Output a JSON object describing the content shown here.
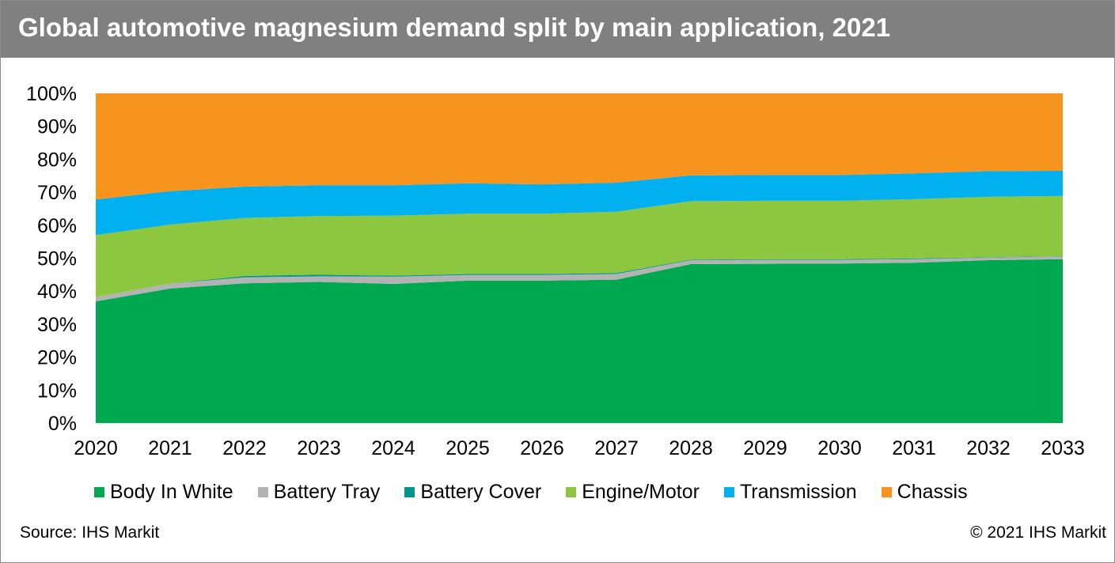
{
  "title": "Global automotive magnesium demand split by main application, 2021",
  "source": "Source: IHS Markit",
  "copyright": "© 2021 IHS Markit",
  "colors": {
    "title_bar": "#808080",
    "body_in_white": "#00A94F",
    "battery_tray": "#B3B3B3",
    "battery_cover": "#00958F",
    "engine_motor": "#8DC63F",
    "transmission": "#00B0EF",
    "chassis": "#F7941D"
  },
  "chart_data": {
    "type": "area",
    "stacked": "percent",
    "x": [
      2020,
      2021,
      2022,
      2023,
      2024,
      2025,
      2026,
      2027,
      2028,
      2029,
      2030,
      2031,
      2032,
      2033
    ],
    "ylim": [
      0,
      100
    ],
    "yticks": [
      "0%",
      "10%",
      "20%",
      "30%",
      "40%",
      "50%",
      "60%",
      "70%",
      "80%",
      "90%",
      "100%"
    ],
    "legend_position": "bottom",
    "grid": false,
    "series": [
      {
        "name": "Body In White",
        "color": "#00A94F",
        "values": [
          36.9,
          40.8,
          42.4,
          42.8,
          42.2,
          43.2,
          43.2,
          43.5,
          48.2,
          48.3,
          48.4,
          48.6,
          49.4,
          49.7
        ]
      },
      {
        "name": "Battery Tray",
        "color": "#B3B3B3",
        "values": [
          1.3,
          1.5,
          1.8,
          1.7,
          2.2,
          1.7,
          1.7,
          1.7,
          1.2,
          1.2,
          1.1,
          1.1,
          0.8,
          0.8
        ]
      },
      {
        "name": "Battery Cover",
        "color": "#00958F",
        "values": [
          0.0,
          0.0,
          0.4,
          0.5,
          0.3,
          0.3,
          0.3,
          0.3,
          0.2,
          0.2,
          0.2,
          0.2,
          0.1,
          0.1
        ]
      },
      {
        "name": "Engine/Motor",
        "color": "#8DC63F",
        "values": [
          18.8,
          17.9,
          17.6,
          17.8,
          18.2,
          18.3,
          18.3,
          18.6,
          17.7,
          17.7,
          17.7,
          18.0,
          18.3,
          18.3
        ]
      },
      {
        "name": "Transmission",
        "color": "#00B0EF",
        "values": [
          10.8,
          10.1,
          9.5,
          9.3,
          9.2,
          9.2,
          8.9,
          8.8,
          7.8,
          7.8,
          7.8,
          7.8,
          7.8,
          7.6
        ]
      },
      {
        "name": "Chassis",
        "color": "#F7941D",
        "values": [
          32.2,
          29.7,
          28.3,
          27.9,
          27.9,
          27.3,
          27.6,
          27.1,
          24.9,
          24.8,
          24.8,
          24.3,
          23.6,
          23.5
        ]
      }
    ]
  }
}
